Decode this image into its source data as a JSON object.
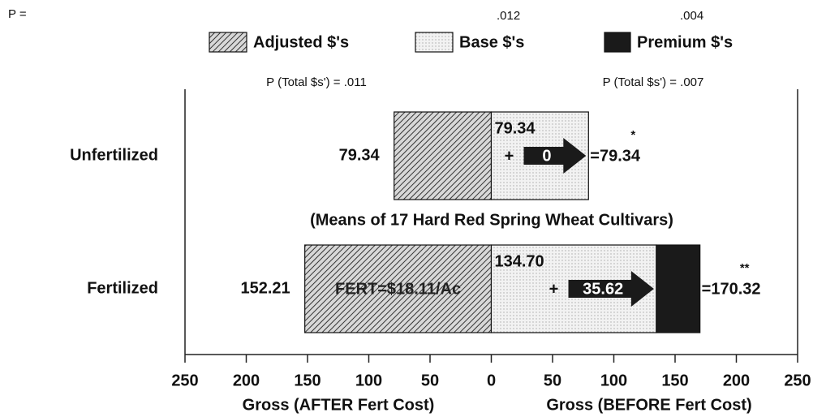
{
  "chart_data": {
    "type": "bar",
    "orientation": "horizontal",
    "categories": [
      "Unfertilized",
      "Fertilized"
    ],
    "series": [
      {
        "name": "Adjusted $'s",
        "color": "#555555",
        "pattern": "hatch",
        "values": [
          -79.34,
          -152.21
        ],
        "value_labels": [
          "79.34",
          "152.21"
        ]
      },
      {
        "name": "Base $'s",
        "color": "#e4e4e4",
        "pattern": "dots",
        "values": [
          79.34,
          134.7
        ],
        "value_labels": [
          "79.34",
          "134.70"
        ]
      },
      {
        "name": "Premium $'s",
        "color": "#1a1a1a",
        "pattern": "solid",
        "values": [
          0,
          35.62
        ],
        "value_labels": [
          "0",
          "35.62"
        ]
      }
    ],
    "totals": {
      "values": [
        79.34,
        170.32
      ],
      "value_labels": [
        "=79.34",
        "=170.32"
      ]
    },
    "significance": [
      "*",
      "**"
    ],
    "plus_sign": "+",
    "subtitle": "(Means of 17 Hard Red Spring Wheat Cultivars)",
    "fert_note": "FERT=$18.11/Ac",
    "p_label": "P =",
    "p_values": [
      ".012",
      ".004"
    ],
    "p_totals": [
      "P (Total $s') = .011",
      "P (Total $s') = .007"
    ],
    "xlabel_left": "Gross (AFTER Fert Cost)",
    "xlabel_right": "Gross (BEFORE Fert Cost)",
    "xlim": [
      -250,
      250
    ],
    "xticks": [
      {
        "value": -250,
        "label": "250"
      },
      {
        "value": -200,
        "label": "200"
      },
      {
        "value": -150,
        "label": "150"
      },
      {
        "value": -100,
        "label": "100"
      },
      {
        "value": -50,
        "label": "50"
      },
      0,
      50,
      100,
      150,
      200,
      250
    ]
  }
}
